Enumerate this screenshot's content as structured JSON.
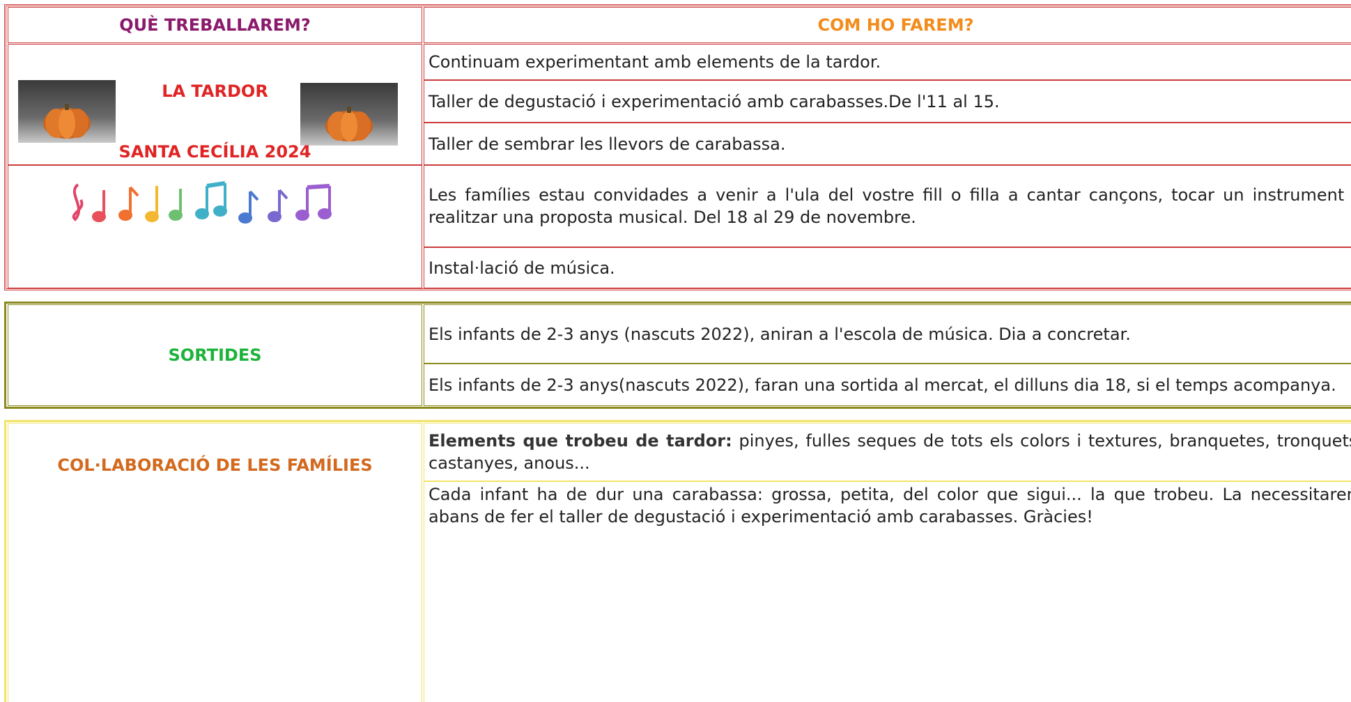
{
  "tables": [
    {
      "header": [
        "QUÈ TREBALLAREM?",
        "COM HO FAREM?"
      ],
      "rows": [
        {
          "topic": "LA TARDOR",
          "items": [
            "Continuam experimentant amb elements de la tardor.",
            "Taller de degustació i experimentació amb carabasses.De l'11 al 15.",
            "Taller de sembrar les llevors de carabassa."
          ]
        },
        {
          "topic": "SANTA CECÍLIA 2024",
          "items": [
            "Les famílies estau convidades a venir a l'ula del vostre fill o filla a cantar cançons, tocar un instrument o realitzar una proposta musical. Del 18 al 29 de novembre.",
            "Instal·lació de música."
          ]
        }
      ]
    },
    {
      "rows": [
        {
          "topic": "SORTIDES",
          "items": [
            "Els infants de 2-3 anys (nascuts 2022), aniran a l'escola de música. Dia a concretar.",
            "Els infants de 2-3 anys(nascuts 2022), faran una sortida al mercat, el dilluns dia 18, si el temps acompanya."
          ]
        }
      ]
    },
    {
      "rows": [
        {
          "topic": "COL·LABORACIÓ DE LES FAMÍLIES",
          "items": [
            {
              "bold": "Elements que trobeu de tardor:",
              "text": "pinyes, fulles seques de tots els colors i textures, branquetes, tronquets, castanyes, anous..."
            },
            "Cada infant ha de dur una carabassa: grossa, petita, del color que sigui... la que trobeu. La necessitarem abans de fer el taller de degustació i experimentació amb carabasses. Gràcies!"
          ]
        }
      ]
    }
  ]
}
